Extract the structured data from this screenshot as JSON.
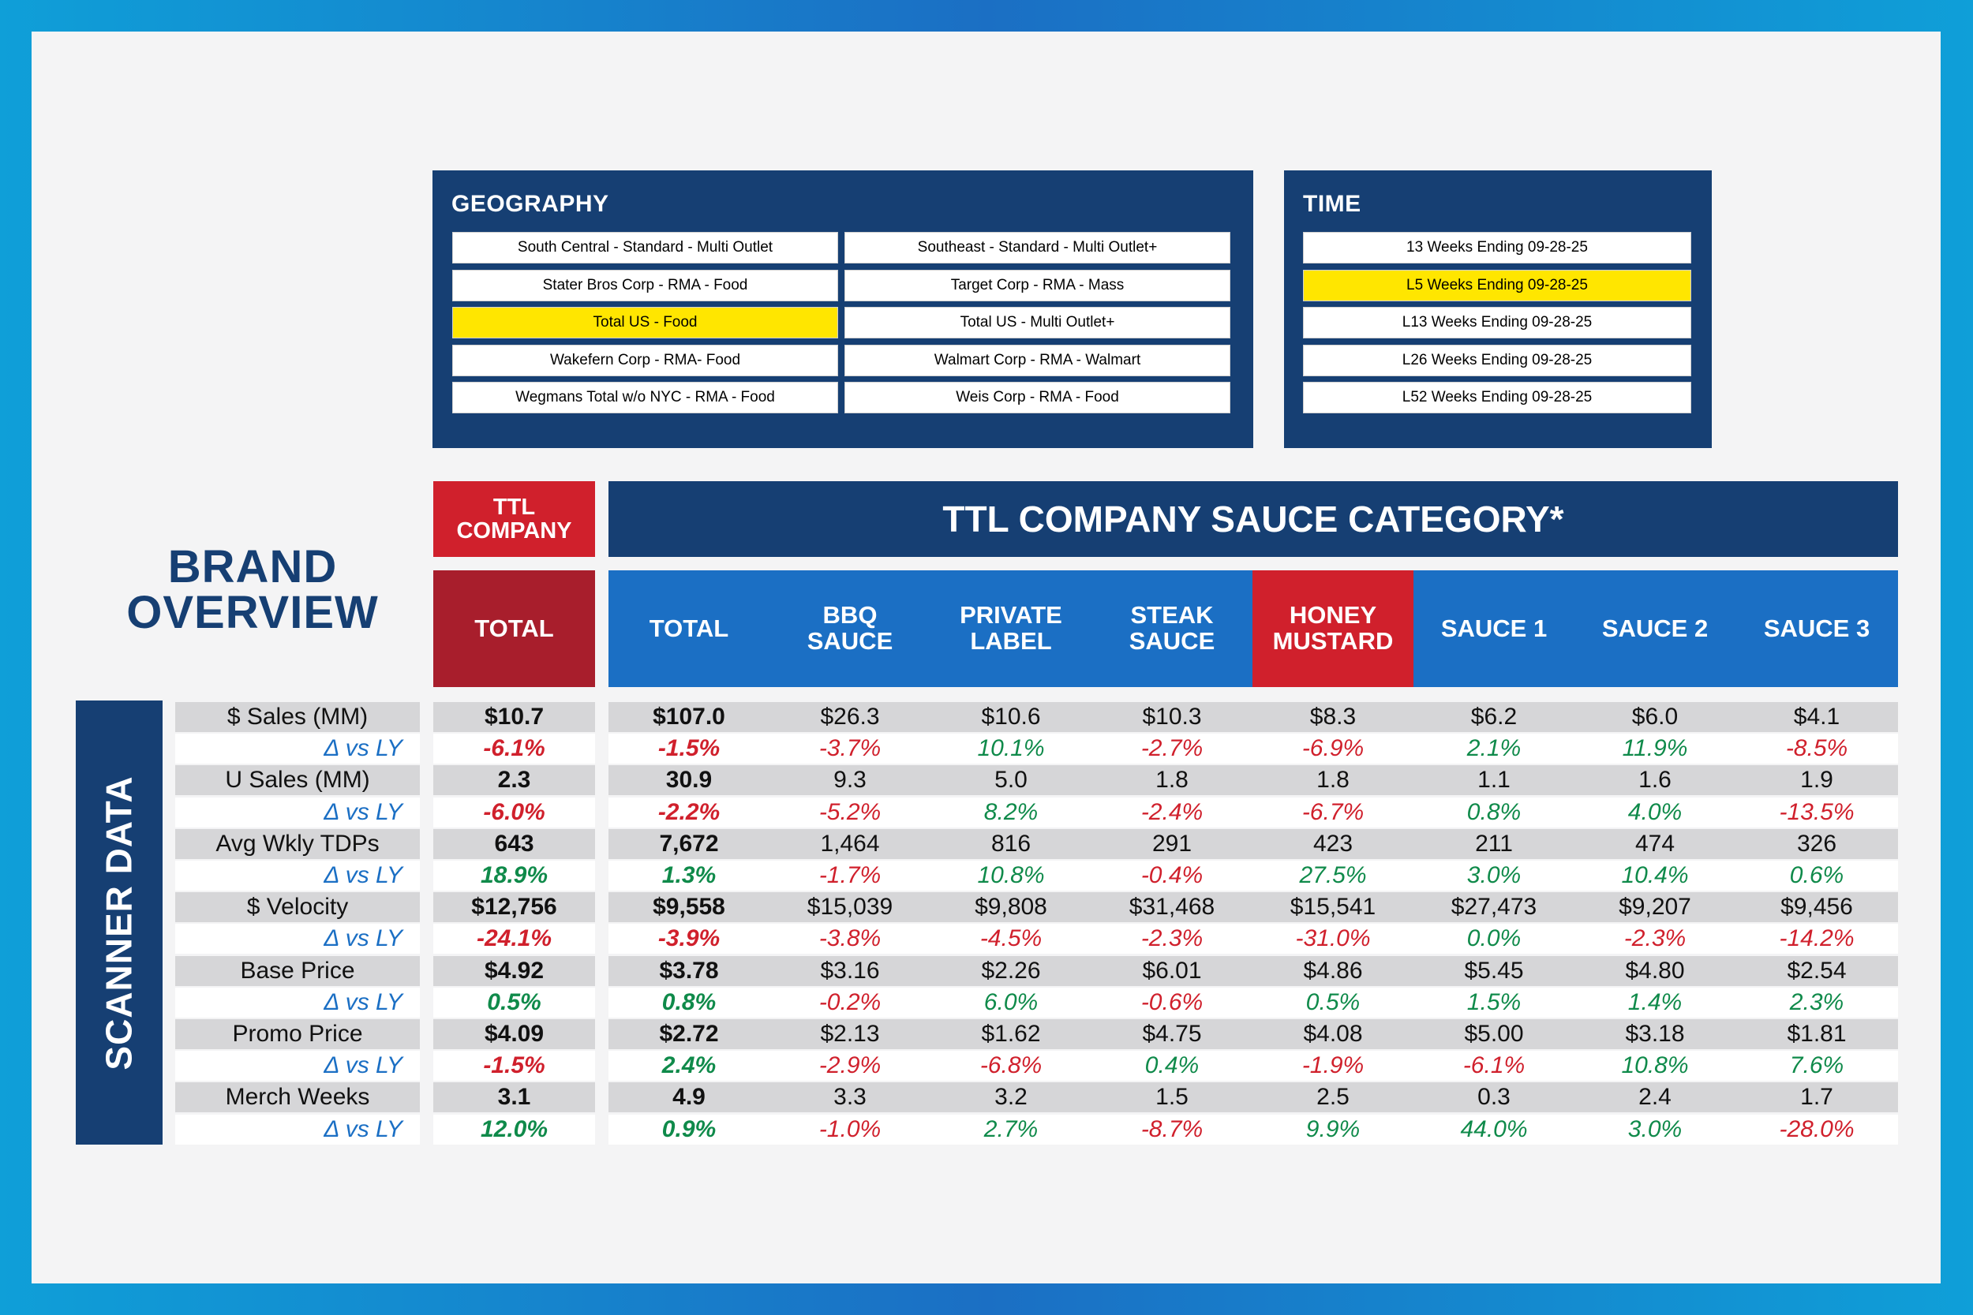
{
  "colors": {
    "navy": "#163f73",
    "blue": "#1b6fc4",
    "red": "#d0202c",
    "darkred": "#a81e2c",
    "highlight": "#ffe600",
    "green": "#0f8a4a"
  },
  "geography": {
    "title": "GEOGRAPHY",
    "options": [
      "South Central - Standard - Multi Outlet",
      "Southeast - Standard - Multi Outlet+",
      "Stater Bros Corp - RMA - Food",
      "Target Corp - RMA - Mass",
      "Total US - Food",
      "Total US - Multi Outlet+",
      "Wakefern Corp - RMA- Food",
      "Walmart Corp - RMA - Walmart",
      "Wegmans Total w/o NYC - RMA - Food",
      "Weis Corp - RMA - Food"
    ],
    "selected": 4
  },
  "time": {
    "title": "TIME",
    "options": [
      "13 Weeks Ending 09-28-25",
      "L5 Weeks Ending 09-28-25",
      "L13 Weeks Ending 09-28-25",
      "L26 Weeks Ending 09-28-25",
      "L52 Weeks Ending 09-28-25"
    ],
    "selected": 1
  },
  "brand_title": {
    "line1": "BRAND",
    "line2": "OVERVIEW"
  },
  "company_header": {
    "line1": "TTL",
    "line2": "COMPANY"
  },
  "category_header": "TTL COMPANY SAUCE CATEGORY*",
  "scanner_label": "SCANNER DATA",
  "columns": [
    {
      "line1": "TOTAL",
      "line2": ""
    },
    {
      "line1": "TOTAL",
      "line2": ""
    },
    {
      "line1": "BBQ",
      "line2": "SAUCE"
    },
    {
      "line1": "PRIVATE",
      "line2": "LABEL"
    },
    {
      "line1": "STEAK",
      "line2": "SAUCE"
    },
    {
      "line1": "HONEY",
      "line2": "MUSTARD"
    },
    {
      "line1": "SAUCE 1",
      "line2": ""
    },
    {
      "line1": "SAUCE 2",
      "line2": ""
    },
    {
      "line1": "SAUCE 3",
      "line2": ""
    }
  ],
  "rows": [
    {
      "label": "$ Sales (MM)",
      "type": "metric",
      "values": [
        "$10.7",
        "$107.0",
        "$26.3",
        "$10.6",
        "$10.3",
        "$8.3",
        "$6.2",
        "$6.0",
        "$4.1"
      ]
    },
    {
      "label": "Δ vs LY",
      "type": "delta",
      "values": [
        "-6.1%",
        "-1.5%",
        "-3.7%",
        "10.1%",
        "-2.7%",
        "-6.9%",
        "2.1%",
        "11.9%",
        "-8.5%"
      ]
    },
    {
      "label": "U Sales (MM)",
      "type": "metric",
      "values": [
        "2.3",
        "30.9",
        "9.3",
        "5.0",
        "1.8",
        "1.8",
        "1.1",
        "1.6",
        "1.9"
      ]
    },
    {
      "label": "Δ vs LY",
      "type": "delta",
      "values": [
        "-6.0%",
        "-2.2%",
        "-5.2%",
        "8.2%",
        "-2.4%",
        "-6.7%",
        "0.8%",
        "4.0%",
        "-13.5%"
      ]
    },
    {
      "label": "Avg Wkly TDPs",
      "type": "metric",
      "values": [
        "643",
        "7,672",
        "1,464",
        "816",
        "291",
        "423",
        "211",
        "474",
        "326"
      ]
    },
    {
      "label": "Δ vs LY",
      "type": "delta",
      "values": [
        "18.9%",
        "1.3%",
        "-1.7%",
        "10.8%",
        "-0.4%",
        "27.5%",
        "3.0%",
        "10.4%",
        "0.6%"
      ]
    },
    {
      "label": "$ Velocity",
      "type": "metric",
      "values": [
        "$12,756",
        "$9,558",
        "$15,039",
        "$9,808",
        "$31,468",
        "$15,541",
        "$27,473",
        "$9,207",
        "$9,456"
      ]
    },
    {
      "label": "Δ vs LY",
      "type": "delta",
      "values": [
        "-24.1%",
        "-3.9%",
        "-3.8%",
        "-4.5%",
        "-2.3%",
        "-31.0%",
        "0.0%",
        "-2.3%",
        "-14.2%"
      ]
    },
    {
      "label": "Base Price",
      "type": "metric",
      "values": [
        "$4.92",
        "$3.78",
        "$3.16",
        "$2.26",
        "$6.01",
        "$4.86",
        "$5.45",
        "$4.80",
        "$2.54"
      ]
    },
    {
      "label": "Δ vs LY",
      "type": "delta",
      "values": [
        "0.5%",
        "0.8%",
        "-0.2%",
        "6.0%",
        "-0.6%",
        "0.5%",
        "1.5%",
        "1.4%",
        "2.3%"
      ]
    },
    {
      "label": "Promo Price",
      "type": "metric",
      "values": [
        "$4.09",
        "$2.72",
        "$2.13",
        "$1.62",
        "$4.75",
        "$4.08",
        "$5.00",
        "$3.18",
        "$1.81"
      ]
    },
    {
      "label": "Δ vs LY",
      "type": "delta",
      "values": [
        "-1.5%",
        "2.4%",
        "-2.9%",
        "-6.8%",
        "0.4%",
        "-1.9%",
        "-6.1%",
        "10.8%",
        "7.6%"
      ]
    },
    {
      "label": "Merch Weeks",
      "type": "metric",
      "values": [
        "3.1",
        "4.9",
        "3.3",
        "3.2",
        "1.5",
        "2.5",
        "0.3",
        "2.4",
        "1.7"
      ]
    },
    {
      "label": "Δ vs LY",
      "type": "delta",
      "values": [
        "12.0%",
        "0.9%",
        "-1.0%",
        "2.7%",
        "-8.7%",
        "9.9%",
        "44.0%",
        "3.0%",
        "-28.0%"
      ]
    }
  ]
}
